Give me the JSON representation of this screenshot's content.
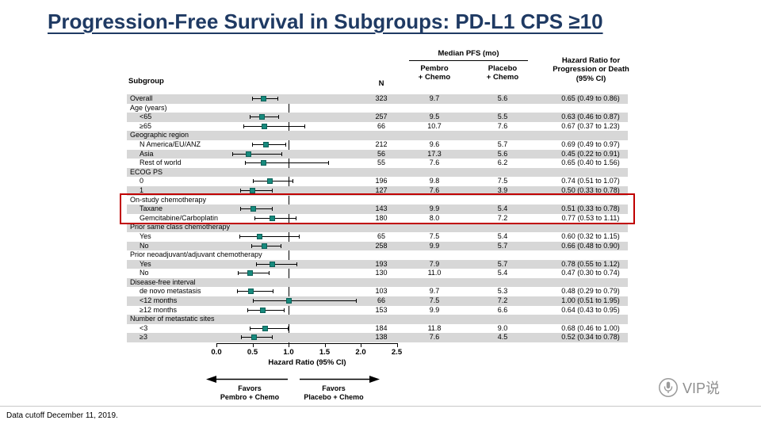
{
  "title": "Progression-Free Survival in Subgroups: PD-L1 CPS ≥10",
  "footer": {
    "data_cutoff": "Data cutoff December 11, 2019.",
    "logo_text": "VIP说"
  },
  "chart_data": {
    "type": "forest",
    "title": "Progression-Free Survival in Subgroups: PD-L1 CPS ≥10",
    "headers": {
      "subgroup": "Subgroup",
      "n": "N",
      "median_pfs": "Median PFS (mo)",
      "pembro": "Pembro\n+ Chemo",
      "placebo": "Placebo\n+ Chemo",
      "hazard_ratio": "Hazard Ratio for\nProgression or Death\n(95% CI)"
    },
    "axis": {
      "label": "Hazard Ratio (95% CI)",
      "ticks": [
        0.0,
        0.5,
        1.0,
        1.5,
        2.0,
        2.5
      ],
      "tick_labels": [
        "0.0",
        "0.5",
        "1.0",
        "1.5",
        "2.0",
        "2.5"
      ],
      "range": [
        0,
        2.5
      ],
      "reference_line": 1.0
    },
    "favors_left": "Favors\nPembro + Chemo",
    "favors_right": "Favors\nPlacebo + Chemo",
    "marker_color": "#178a7d",
    "highlight": {
      "color": "#c00000",
      "rows": [
        "On-study chemotherapy",
        "Taxane",
        "Gemcitabine/Carboplatin"
      ],
      "start_index": 11,
      "end_index": 13
    },
    "rows": [
      {
        "label": "Overall",
        "indent": false,
        "n": "323",
        "pembro": "9.7",
        "placebo": "5.6",
        "hr": 0.65,
        "lo": 0.49,
        "hi": 0.86,
        "hr_text": "0.65 (0.49 to 0.86)"
      },
      {
        "label": "Age (years)",
        "indent": false
      },
      {
        "label": "<65",
        "indent": true,
        "n": "257",
        "pembro": "9.5",
        "placebo": "5.5",
        "hr": 0.63,
        "lo": 0.46,
        "hi": 0.87,
        "hr_text": "0.63 (0.46 to 0.87)"
      },
      {
        "label": "≥65",
        "indent": true,
        "n": "66",
        "pembro": "10.7",
        "placebo": "7.6",
        "hr": 0.67,
        "lo": 0.37,
        "hi": 1.23,
        "hr_text": "0.67 (0.37 to 1.23)"
      },
      {
        "label": "Geographic region",
        "indent": false
      },
      {
        "label": "N America/EU/ANZ",
        "indent": true,
        "n": "212",
        "pembro": "9.6",
        "placebo": "5.7",
        "hr": 0.69,
        "lo": 0.49,
        "hi": 0.97,
        "hr_text": "0.69 (0.49 to 0.97)"
      },
      {
        "label": "Asia",
        "indent": true,
        "n": "56",
        "pembro": "17.3",
        "placebo": "5.6",
        "hr": 0.45,
        "lo": 0.22,
        "hi": 0.91,
        "hr_text": "0.45 (0.22 to 0.91)"
      },
      {
        "label": "Rest of world",
        "indent": true,
        "n": "55",
        "pembro": "7.6",
        "placebo": "6.2",
        "hr": 0.65,
        "lo": 0.4,
        "hi": 1.56,
        "hr_text": "0.65 (0.40 to 1.56)"
      },
      {
        "label": "ECOG PS",
        "indent": false
      },
      {
        "label": "0",
        "indent": true,
        "n": "196",
        "pembro": "9.8",
        "placebo": "7.5",
        "hr": 0.74,
        "lo": 0.51,
        "hi": 1.07,
        "hr_text": "0.74 (0.51 to 1.07)"
      },
      {
        "label": "1",
        "indent": true,
        "n": "127",
        "pembro": "7.6",
        "placebo": "3.9",
        "hr": 0.5,
        "lo": 0.33,
        "hi": 0.78,
        "hr_text": "0.50 (0.33 to 0.78)"
      },
      {
        "label": "On-study chemotherapy",
        "indent": false
      },
      {
        "label": "Taxane",
        "indent": true,
        "n": "143",
        "pembro": "9.9",
        "placebo": "5.4",
        "hr": 0.51,
        "lo": 0.33,
        "hi": 0.78,
        "hr_text": "0.51 (0.33 to 0.78)"
      },
      {
        "label": "Gemcitabine/Carboplatin",
        "indent": true,
        "n": "180",
        "pembro": "8.0",
        "placebo": "7.2",
        "hr": 0.77,
        "lo": 0.53,
        "hi": 1.11,
        "hr_text": "0.77 (0.53 to 1.11)"
      },
      {
        "label": "Prior same class chemotherapy",
        "indent": false
      },
      {
        "label": "Yes",
        "indent": true,
        "n": "65",
        "pembro": "7.5",
        "placebo": "5.4",
        "hr": 0.6,
        "lo": 0.32,
        "hi": 1.15,
        "hr_text": "0.60 (0.32 to 1.15)"
      },
      {
        "label": "No",
        "indent": true,
        "n": "258",
        "pembro": "9.9",
        "placebo": "5.7",
        "hr": 0.66,
        "lo": 0.48,
        "hi": 0.9,
        "hr_text": "0.66 (0.48 to 0.90)"
      },
      {
        "label": "Prior neoadjuvant/adjuvant chemotherapy",
        "indent": false
      },
      {
        "label": "Yes",
        "indent": true,
        "n": "193",
        "pembro": "7.9",
        "placebo": "5.7",
        "hr": 0.78,
        "lo": 0.55,
        "hi": 1.12,
        "hr_text": "0.78 (0.55 to 1.12)"
      },
      {
        "label": "No",
        "indent": true,
        "n": "130",
        "pembro": "11.0",
        "placebo": "5.4",
        "hr": 0.47,
        "lo": 0.3,
        "hi": 0.74,
        "hr_text": "0.47 (0.30 to 0.74)"
      },
      {
        "label": "Disease-free interval",
        "indent": false
      },
      {
        "label": "de novo metastasis",
        "indent": true,
        "n": "103",
        "pembro": "9.7",
        "placebo": "5.3",
        "hr": 0.48,
        "lo": 0.29,
        "hi": 0.79,
        "hr_text": "0.48 (0.29 to 0.79)"
      },
      {
        "label": "<12 months",
        "indent": true,
        "n": "66",
        "pembro": "7.5",
        "placebo": "7.2",
        "hr": 1.0,
        "lo": 0.51,
        "hi": 1.95,
        "hr_text": "1.00 (0.51 to 1.95)"
      },
      {
        "label": "≥12 months",
        "indent": true,
        "n": "153",
        "pembro": "9.9",
        "placebo": "6.6",
        "hr": 0.64,
        "lo": 0.43,
        "hi": 0.95,
        "hr_text": "0.64 (0.43 to 0.95)"
      },
      {
        "label": "Number of metastatic sites",
        "indent": false
      },
      {
        "label": "<3",
        "indent": true,
        "n": "184",
        "pembro": "11.8",
        "placebo": "9.0",
        "hr": 0.68,
        "lo": 0.46,
        "hi": 1.0,
        "hr_text": "0.68 (0.46 to 1.00)"
      },
      {
        "label": "≥3",
        "indent": true,
        "n": "138",
        "pembro": "7.6",
        "placebo": "4.5",
        "hr": 0.52,
        "lo": 0.34,
        "hi": 0.78,
        "hr_text": "0.52 (0.34 to 0.78)"
      }
    ]
  }
}
